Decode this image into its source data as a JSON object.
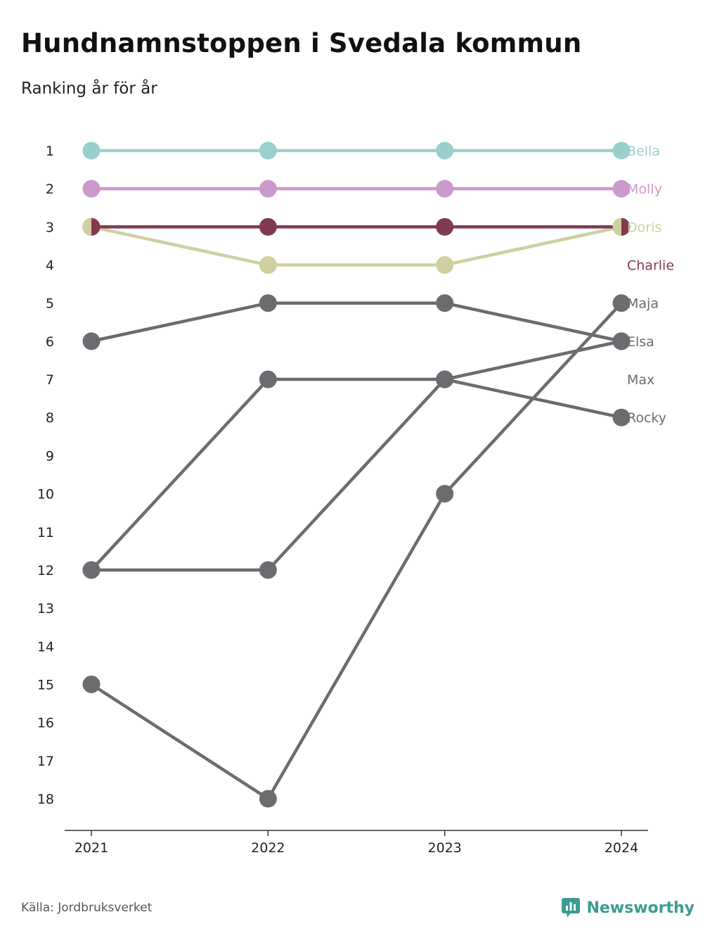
{
  "title": "Hundnamnstoppen i Svedala kommun",
  "subtitle": "Ranking år för år",
  "source": "Källa: Jordbruksverket",
  "brand": {
    "name": "Newsworthy",
    "icon": "newsworthy-logo-icon",
    "color": "#3a9c92"
  },
  "chart_data": {
    "type": "line",
    "x": [
      "2021",
      "2022",
      "2023",
      "2024"
    ],
    "y_ticks": [
      "1",
      "2",
      "3",
      "4",
      "5",
      "6",
      "7",
      "8",
      "9",
      "10",
      "11",
      "12",
      "13",
      "14",
      "15",
      "16",
      "17",
      "18"
    ],
    "ylim": [
      1,
      18
    ],
    "y_reversed": true,
    "grid": false,
    "series": [
      {
        "name": "Bella",
        "values": [
          1,
          1,
          1,
          1
        ],
        "color": "#9acfcd"
      },
      {
        "name": "Molly",
        "values": [
          2,
          2,
          2,
          2
        ],
        "color": "#cc99cc"
      },
      {
        "name": "Doris",
        "values": [
          3,
          4,
          4,
          3
        ],
        "color": "#cfcf9f"
      },
      {
        "name": "Charlie",
        "values": [
          3,
          3,
          3,
          3
        ],
        "color": "#7f3a50"
      },
      {
        "name": "Maja",
        "values": [
          15,
          18,
          10,
          5
        ],
        "color": "#6b6b70"
      },
      {
        "name": "Elsa",
        "values": [
          6,
          5,
          5,
          6
        ],
        "color": "#6b6b70"
      },
      {
        "name": "Max",
        "values": [
          12,
          12,
          7,
          8
        ],
        "color": "#6b6b70"
      },
      {
        "name": "Rocky",
        "values": [
          12,
          7,
          7,
          6
        ],
        "color": "#6b6b70"
      }
    ],
    "label_order": [
      "Bella",
      "Molly",
      "Doris",
      "Charlie",
      "Maja",
      "Elsa",
      "Max",
      "Rocky"
    ]
  }
}
